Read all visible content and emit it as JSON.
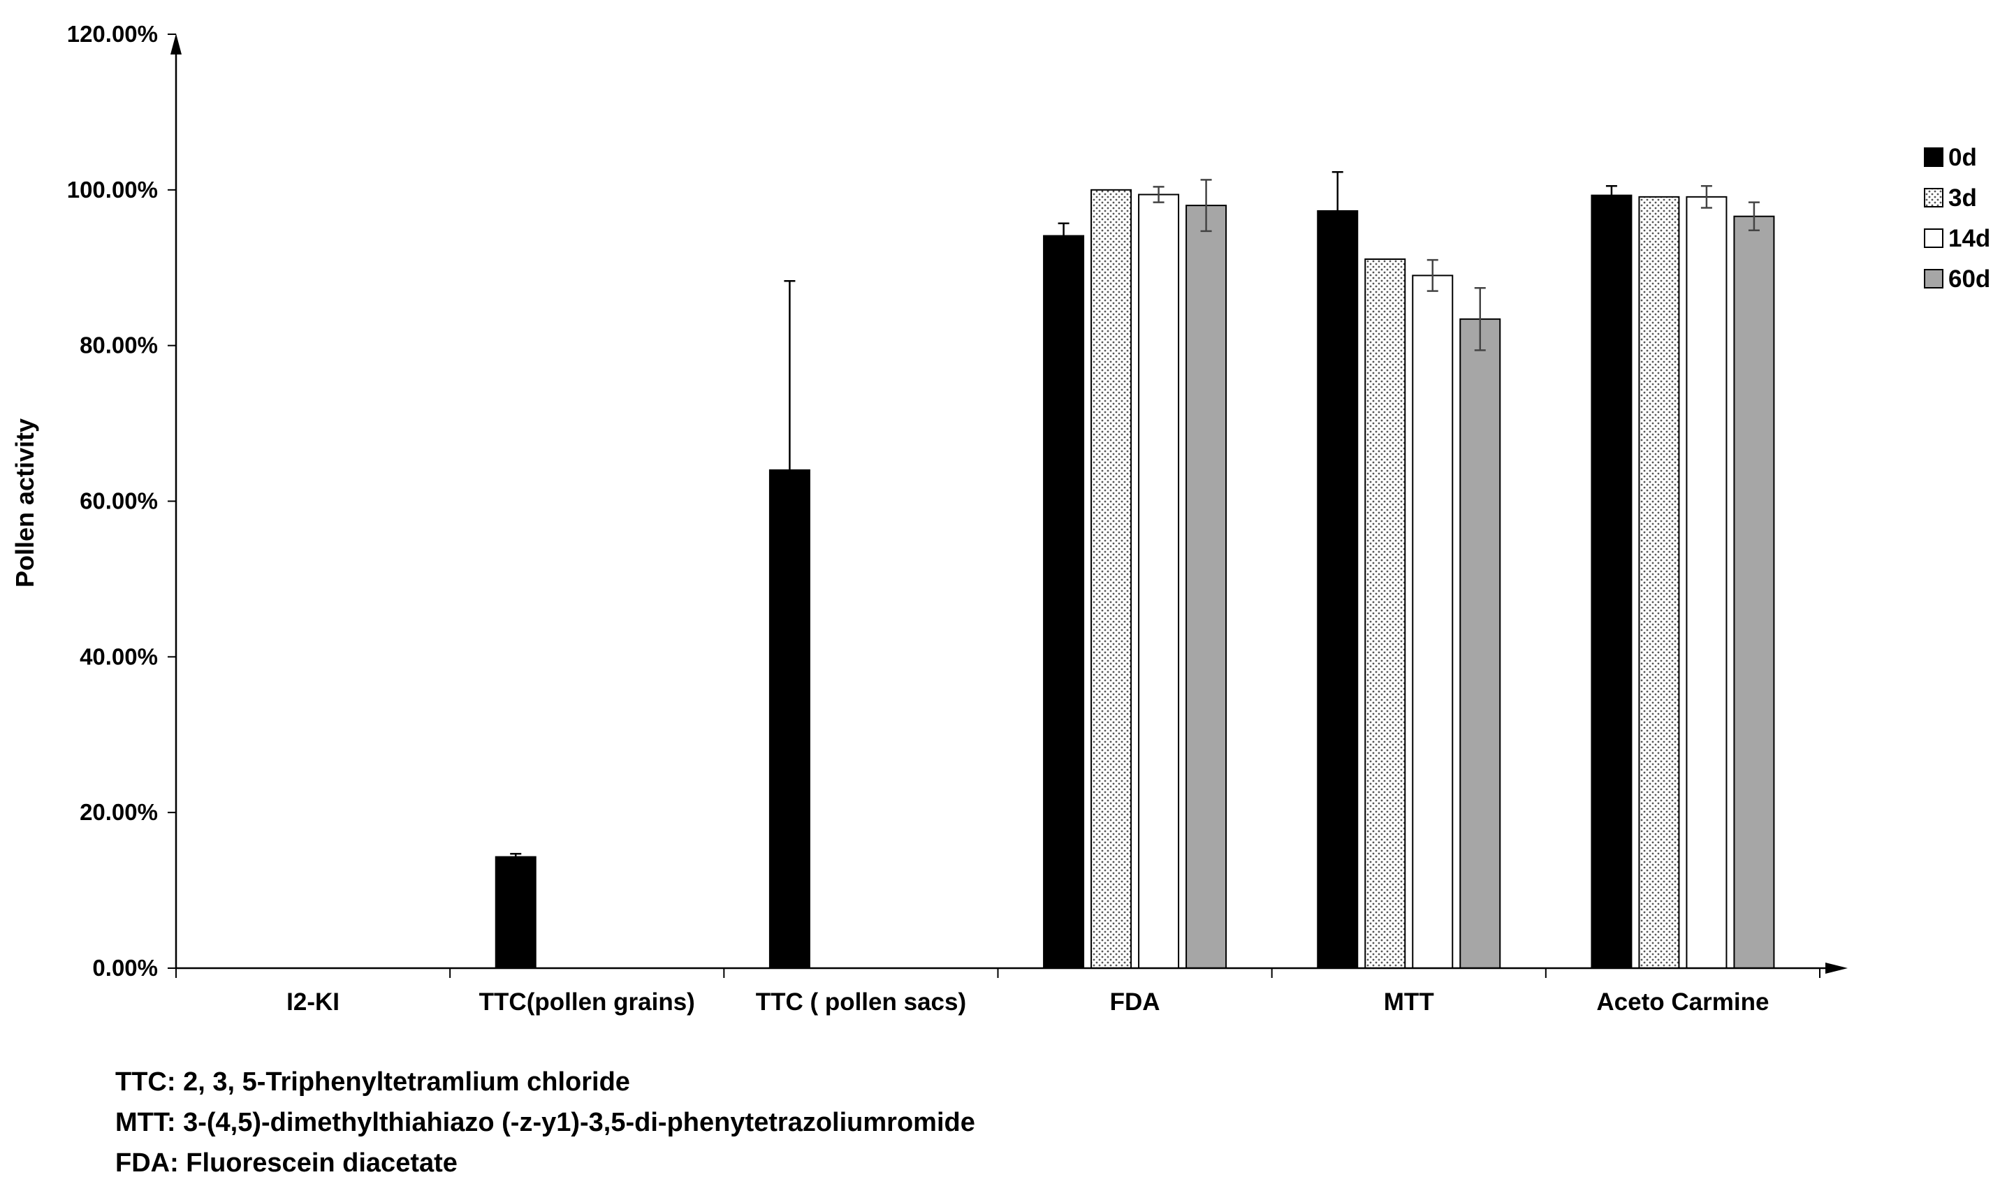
{
  "chart_data": {
    "type": "bar",
    "ylabel": "Pollen activity",
    "xlabel": "",
    "ylim": [
      0,
      1.2
    ],
    "yticks": [
      "0.00%",
      "20.00%",
      "40.00%",
      "60.00%",
      "80.00%",
      "100.00%",
      "120.00%"
    ],
    "categories": [
      "I2-KI",
      "TTC(pollen grains)",
      "TTC ( pollen sacs)",
      "FDA",
      "MTT",
      "Aceto Carmine"
    ],
    "legend_position": "top-right",
    "grid": false,
    "series": [
      {
        "name": "0d",
        "fill": "#000000",
        "pattern": "solid",
        "values": [
          0,
          0.143,
          0.64,
          0.941,
          0.973,
          0.993
        ],
        "errors": [
          0,
          0.004,
          0.243,
          0.016,
          0.05,
          0.012
        ]
      },
      {
        "name": "3d",
        "fill": "#ffffff",
        "pattern": "dotted",
        "values": [
          0,
          0,
          0,
          1.0,
          0.911,
          0.991
        ],
        "errors": [
          0,
          0,
          0,
          0,
          0,
          0
        ]
      },
      {
        "name": "14d",
        "fill": "#ffffff",
        "pattern": "solid",
        "values": [
          0,
          0,
          0,
          0.994,
          0.89,
          0.991
        ],
        "errors": [
          0,
          0,
          0,
          0.01,
          0.02,
          0.014
        ]
      },
      {
        "name": "60d",
        "fill": "#a6a6a6",
        "pattern": "solid",
        "values": [
          0,
          0,
          0,
          0.98,
          0.834,
          0.966
        ],
        "errors": [
          0,
          0,
          0,
          0.033,
          0.04,
          0.018
        ]
      }
    ]
  },
  "footnotes": [
    "TTC: 2, 3, 5-Triphenyltetramlium chloride",
    "MTT: 3-(4,5)-dimethylthiahiazo (-z-y1)-3,5-di-phenytetrazoliumromide",
    "FDA: Fluorescein diacetate"
  ]
}
